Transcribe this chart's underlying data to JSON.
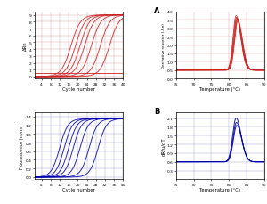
{
  "panel_A_label": "A",
  "panel_B_label": "B",
  "top_left": {
    "ylabel": "ΔRn",
    "xlabel": "Cycle number",
    "xlim": [
      1,
      40
    ],
    "ylim": [
      -0.3,
      9.5
    ],
    "yticks": [
      0,
      1.0,
      2.0,
      3.0,
      4.0,
      5.0,
      6.0,
      7.0,
      8.0,
      9.0
    ],
    "xticks": [
      4,
      8,
      12,
      16,
      20,
      24,
      28,
      32,
      36,
      40
    ],
    "midpoints": [
      17,
      19,
      21,
      23,
      26,
      30,
      34
    ],
    "plateau": 9.0,
    "color": "#cc2222",
    "threshold_y": 0.5
  },
  "top_right": {
    "ylabel": "Derivative reporter (-Rn)",
    "xlabel": "Temperature (°C)",
    "xlim": [
      65,
      90
    ],
    "ylim": [
      0,
      4.0
    ],
    "yticks": [
      0,
      0.5,
      1.0,
      1.5,
      2.0,
      2.5,
      3.0,
      3.5,
      4.0
    ],
    "xticks": [
      65,
      70,
      75,
      80,
      85,
      90
    ],
    "peak_temp": 82,
    "peak_vals": [
      3.75,
      3.65,
      3.6,
      3.55,
      3.5,
      3.45
    ],
    "baseline": 0.5,
    "n_curves": 6,
    "color": "#cc2222"
  },
  "bottom_left": {
    "ylabel": "Fluorescence (norm)",
    "xlabel": "Cycle number",
    "xlim": [
      1,
      40
    ],
    "ylim": [
      -0.05,
      1.5
    ],
    "yticks": [
      0,
      0.2,
      0.4,
      0.6,
      0.8,
      1.0,
      1.2,
      1.4
    ],
    "xticks": [
      4,
      8,
      12,
      16,
      20,
      24,
      28,
      32,
      36,
      40
    ],
    "midpoints": [
      12,
      14,
      16,
      18,
      21,
      25,
      29
    ],
    "plateau": 1.35,
    "color": "#0000aa"
  },
  "bottom_right": {
    "ylabel": "dRfu/dT",
    "xlabel": "Temperature (°C)",
    "xlim": [
      65,
      90
    ],
    "ylim": [
      0,
      2.3
    ],
    "yticks": [
      0.3,
      0.6,
      0.9,
      1.2,
      1.5,
      1.8,
      2.1
    ],
    "xticks": [
      65,
      70,
      75,
      80,
      85,
      90
    ],
    "peak_temp": 82,
    "peak_vals": [
      2.1,
      1.95,
      1.85
    ],
    "baseline": 0.6,
    "n_curves": 3,
    "color": "#0000aa"
  },
  "bg_color": "#ffffff",
  "grid_color": "#ddaaaa",
  "grid_color_blue": "#aaaadd"
}
